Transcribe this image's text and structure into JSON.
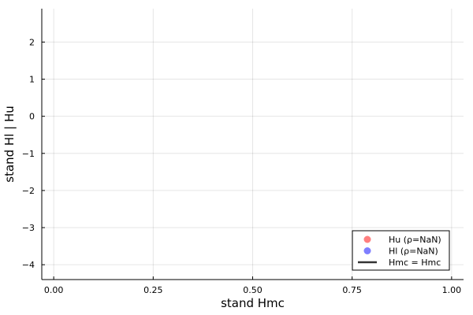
{
  "chart_data": {
    "type": "scatter",
    "title": "",
    "xlabel": "stand Hmc",
    "ylabel": "stand Hl | Hu",
    "xlim": [
      -0.03,
      1.03
    ],
    "ylim": [
      -4.4,
      2.9
    ],
    "xticks": [
      0.0,
      0.25,
      0.5,
      0.75,
      1.0
    ],
    "xtick_labels": [
      "0.00",
      "0.25",
      "0.50",
      "0.75",
      "1.00"
    ],
    "yticks": [
      2,
      1,
      0,
      -1,
      -2,
      -3,
      -4
    ],
    "ytick_labels": [
      "2",
      "1",
      "0",
      "−1",
      "−2",
      "−3",
      "−4"
    ],
    "grid": true,
    "legend_position": "bottom-right",
    "series": [
      {
        "name": "Hu (ρ=NaN)",
        "marker": "circle",
        "color": "#ff0000",
        "opacity": 0.5,
        "x": [],
        "y": []
      },
      {
        "name": "Hl (ρ=NaN)",
        "marker": "circle",
        "color": "#0000ff",
        "opacity": 0.5,
        "x": [],
        "y": []
      },
      {
        "name": "Hmc = Hmc",
        "marker": "line",
        "color": "#333333",
        "x": [],
        "y": []
      }
    ]
  }
}
